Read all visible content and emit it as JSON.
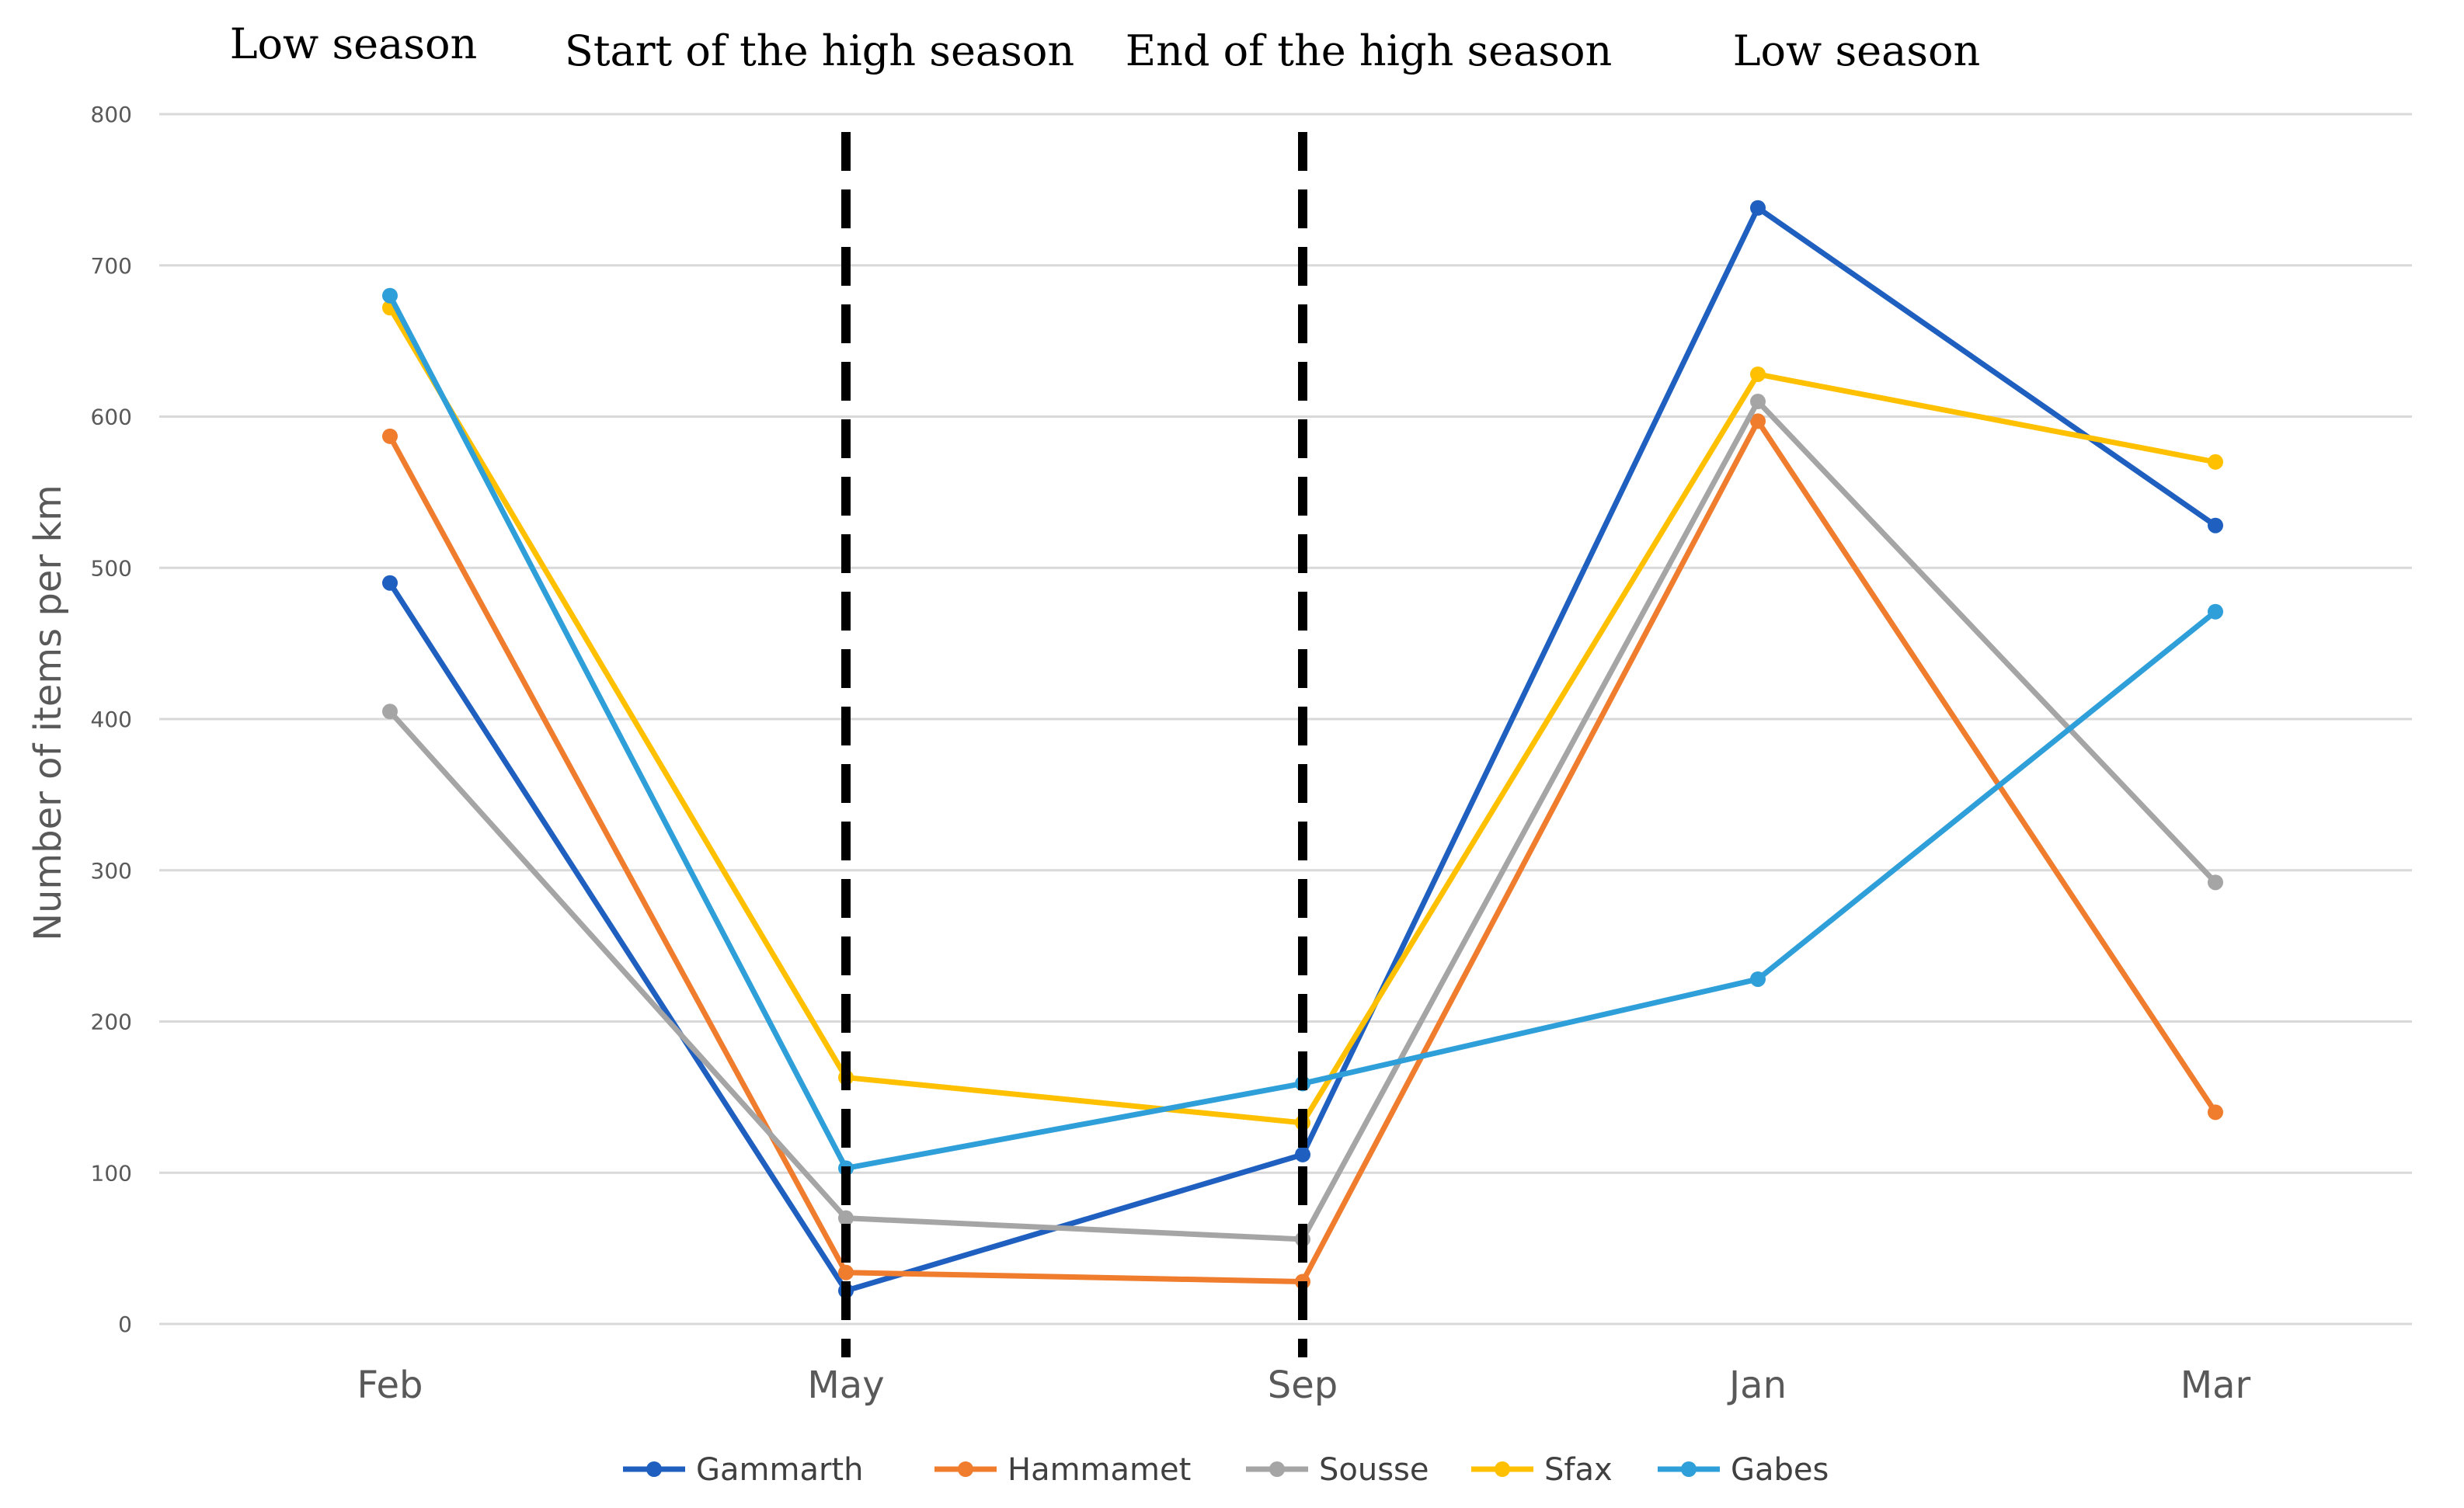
{
  "chart_data": {
    "type": "line",
    "title": "",
    "xlabel": "",
    "ylabel": "Number of items per km",
    "categories": [
      "Feb",
      "May",
      "Sep",
      "Jan",
      "Mar"
    ],
    "ylim": [
      0,
      800
    ],
    "yticks": [
      0,
      100,
      200,
      300,
      400,
      500,
      600,
      700,
      800
    ],
    "grid": true,
    "legend_position": "bottom",
    "series": [
      {
        "name": "Gammarth",
        "color": "#1f5fbf",
        "values": [
          490,
          22,
          112,
          738,
          528
        ]
      },
      {
        "name": "Hammamet",
        "color": "#f07c2e",
        "values": [
          587,
          34,
          28,
          597,
          140
        ]
      },
      {
        "name": "Sousse",
        "color": "#a5a5a5",
        "values": [
          405,
          70,
          56,
          610,
          292
        ]
      },
      {
        "name": "Sfax",
        "color": "#ffc000",
        "values": [
          672,
          163,
          133,
          628,
          570
        ]
      },
      {
        "name": "Gabes",
        "color": "#2e9fd9",
        "values": [
          680,
          103,
          159,
          228,
          471
        ]
      }
    ],
    "season_labels": [
      "Low season",
      "Start of the high season",
      "End of the high season",
      "Low season"
    ],
    "dividers": [
      {
        "after_category": "May",
        "style": "dashed"
      },
      {
        "after_category": "Sep",
        "style": "dashed"
      }
    ]
  }
}
